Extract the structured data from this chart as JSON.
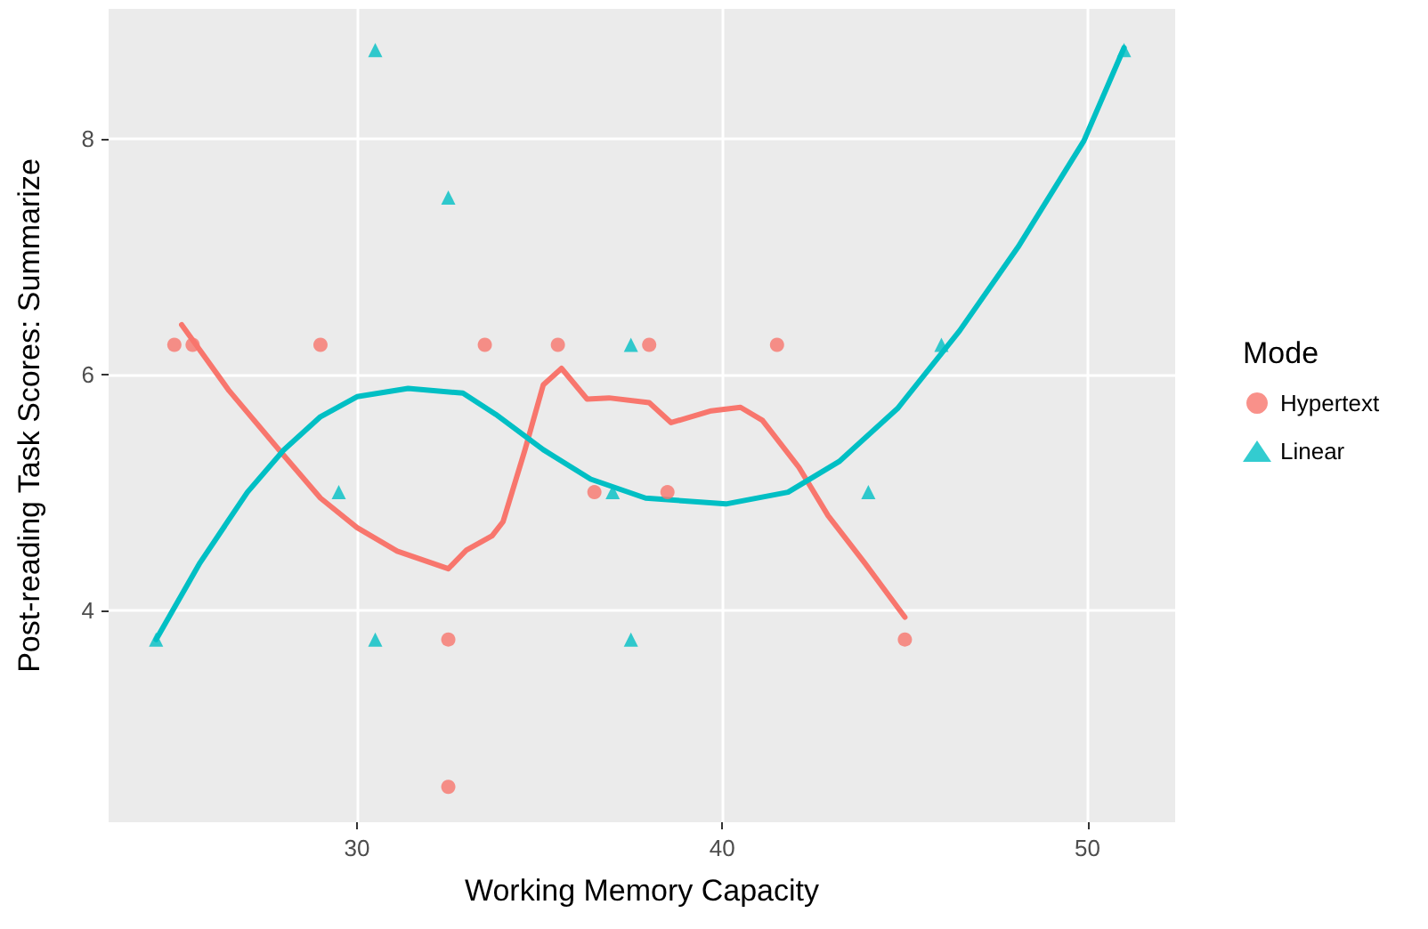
{
  "chart_data": {
    "type": "scatter",
    "xlabel": "Working Memory Capacity",
    "ylabel": "Post-reading Task Scores: Summarize",
    "legend_title": "Mode",
    "xlim": [
      23.2,
      52.4
    ],
    "ylim": [
      2.2,
      9.1
    ],
    "xticks": [
      30,
      40,
      50
    ],
    "yticks": [
      4,
      6,
      8
    ],
    "grid": true,
    "legend": "right",
    "series": [
      {
        "name": "Hypertext",
        "color": "#f8766d",
        "marker": "circle",
        "x": [
          25,
          25.5,
          29,
          33.5,
          35.5,
          36.5,
          32.5,
          32.5,
          38,
          41.5,
          38.5,
          45
        ],
        "values": [
          6.25,
          6.25,
          6.25,
          6.25,
          6.25,
          5,
          3.75,
          2.5,
          6.25,
          6.25,
          5,
          3.75
        ]
      },
      {
        "name": "Linear",
        "color": "#00bfc4",
        "marker": "triangle",
        "x": [
          24.5,
          30.5,
          32.5,
          29.5,
          30.5,
          37.5,
          37.5,
          37,
          44,
          46,
          51
        ],
        "values": [
          3.75,
          8.75,
          7.5,
          5,
          3.75,
          6.25,
          3.75,
          5,
          5,
          6.25,
          8.75
        ]
      },
      {
        "type": "line",
        "color": "#f8766d",
        "x": [
          25.2,
          26.5,
          28,
          29,
          30,
          31.1,
          32.5,
          33,
          33.7,
          34,
          34.6,
          35.1,
          35.6,
          36.3,
          36.9,
          38,
          38.6,
          39.7,
          40.5,
          41.1,
          42.1,
          42.9,
          43.9,
          45
        ],
        "values": [
          6.42,
          5.86,
          5.31,
          4.95,
          4.7,
          4.5,
          4.35,
          4.51,
          4.63,
          4.75,
          5.36,
          5.91,
          6.05,
          5.79,
          5.8,
          5.76,
          5.59,
          5.69,
          5.72,
          5.61,
          5.21,
          4.8,
          4.4,
          3.94
        ]
      },
      {
        "type": "line",
        "color": "#00bfc4",
        "x": [
          24.5,
          25.7,
          27,
          28,
          29,
          30,
          31.4,
          32.9,
          33.8,
          35.1,
          36.4,
          37.9,
          40.1,
          41.8,
          43.2,
          44.8,
          46.5,
          48.1,
          49.9,
          51
        ],
        "values": [
          3.75,
          4.4,
          5,
          5.36,
          5.64,
          5.81,
          5.88,
          5.84,
          5.66,
          5.36,
          5.11,
          4.95,
          4.9,
          5,
          5.26,
          5.71,
          6.37,
          7.08,
          7.98,
          8.77
        ]
      }
    ]
  }
}
